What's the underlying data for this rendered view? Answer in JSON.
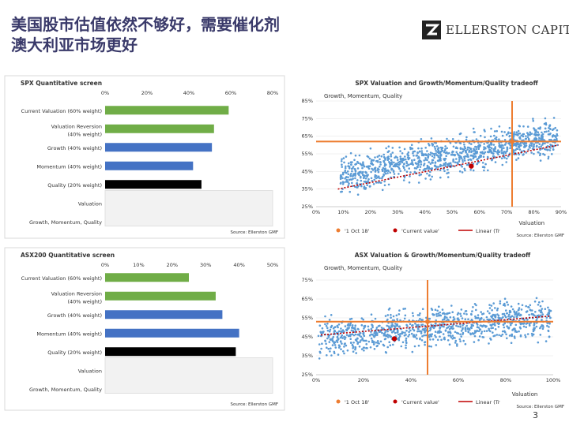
{
  "title": {
    "line1": "美国股市估值依然不够好，需要催化剂",
    "line2": "澳大利亚市场更好"
  },
  "logo": {
    "text": "ELLERSTON CAPITAL",
    "mark_color": "#222222"
  },
  "page_number": "3",
  "colors": {
    "green": "#70ad47",
    "blue": "#4472c4",
    "black": "#000000",
    "scatter": "#5b9bd5",
    "orange": "#ed7d31",
    "red": "#c00000",
    "trend": "#c00000",
    "gray_band": "#f2f2f2"
  },
  "chart_data": [
    {
      "type": "bar",
      "orientation": "horizontal",
      "title": "SPX Quantitative screen",
      "ticks": [
        "0%",
        "20%",
        "40%",
        "60%",
        "80%"
      ],
      "xlim": [
        0,
        80
      ],
      "categories": [
        "Current Valuation (60% weight)",
        "Valuation Reversion (40% weight)",
        "Growth (40% weight)",
        "Momentum (40% weight)",
        "Quality (20% weight)",
        "Valuation",
        "Growth, Momentum, Quality"
      ],
      "values": [
        59,
        52,
        51,
        42,
        46,
        null,
        null
      ],
      "bar_colors": [
        "green",
        "green",
        "blue",
        "blue",
        "black"
      ],
      "source": "Source: Ellerston GMF"
    },
    {
      "type": "scatter",
      "title": "SPX Valuation and Growth/Momentum/Quality tradeoff",
      "ylabel": "Growth, Momentum, Quality",
      "xlabel": "Valuation",
      "xticks": [
        "0%",
        "10%",
        "20%",
        "30%",
        "40%",
        "50%",
        "60%",
        "70%",
        "80%",
        "90%"
      ],
      "yticks": [
        "25%",
        "35%",
        "45%",
        "55%",
        "65%",
        "75%",
        "85%"
      ],
      "xlim": [
        0,
        90
      ],
      "ylim": [
        25,
        85
      ],
      "cloud": {
        "x_range": [
          9,
          89
        ],
        "y_center_at_x0": 40,
        "slope": 0.28,
        "spread": 9,
        "count": 1100
      },
      "oct18": {
        "x": 72,
        "y": 62
      },
      "current": {
        "x": 57,
        "y": 48
      },
      "trend": {
        "x": [
          8,
          89
        ],
        "y": [
          35,
          60
        ]
      },
      "legend": [
        "'1 Oct 18'",
        "'Current value'",
        "Linear (Tr"
      ],
      "source": "Source: Ellerston GMF"
    },
    {
      "type": "bar",
      "orientation": "horizontal",
      "title": "ASX200 Quantitative screen",
      "ticks": [
        "0%",
        "10%",
        "20%",
        "30%",
        "40%",
        "50%"
      ],
      "xlim": [
        0,
        50
      ],
      "categories": [
        "Current Valuation (60% weight)",
        "Valuation Reversion (40% weight)",
        "Growth (40% weight)",
        "Momentum (40% weight)",
        "Quality (20% weight)",
        "Valuation",
        "Growth, Momentum, Quality"
      ],
      "values": [
        25,
        33,
        35,
        40,
        39,
        null,
        null
      ],
      "bar_colors": [
        "green",
        "green",
        "blue",
        "blue",
        "black"
      ],
      "source": "Source: Ellerston GMF"
    },
    {
      "type": "scatter",
      "title": "ASX Valuation & Growth/Momentum/Quality tradeoff",
      "ylabel": "Growth, Momentum, Quality",
      "xlabel": "Valuation",
      "xticks": [
        "0%",
        "20%",
        "40%",
        "60%",
        "80%",
        "100%"
      ],
      "yticks": [
        "25%",
        "35%",
        "45%",
        "55%",
        "65%",
        "75%"
      ],
      "xlim": [
        0,
        100
      ],
      "ylim": [
        25,
        75
      ],
      "cloud": {
        "x_range": [
          1,
          99
        ],
        "y_center_at_x0": 44,
        "slope": 0.12,
        "spread": 9,
        "count": 1000
      },
      "oct18": {
        "x": 47,
        "y": 53
      },
      "current": {
        "x": 33,
        "y": 44
      },
      "trend": {
        "x": [
          2,
          99
        ],
        "y": [
          46,
          56
        ]
      },
      "legend": [
        "'1 Oct 18'",
        "'Current value'",
        "Linear (Tr"
      ],
      "source": "Source: Ellerston GMF"
    }
  ]
}
